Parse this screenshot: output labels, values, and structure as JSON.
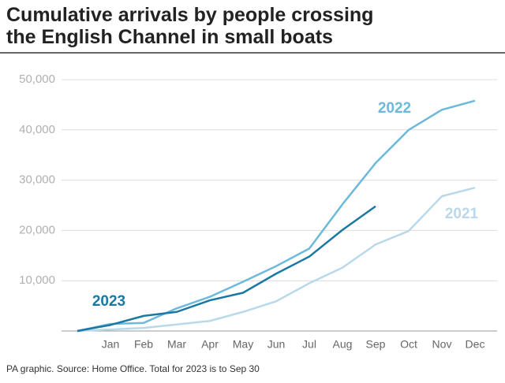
{
  "chart_data": {
    "type": "line",
    "title": [
      "Cumulative arrivals by people crossing",
      "the English Channel in small boats"
    ],
    "source": "PA graphic. Source: Home Office. Total for 2023 is to Sep 30",
    "categories": [
      null,
      "Jan",
      "Feb",
      "Mar",
      "Apr",
      "May",
      "Jun",
      "Jul",
      "Aug",
      "Sep",
      "Oct",
      "Nov",
      "Dec"
    ],
    "series": [
      {
        "name": "2021",
        "color": "#b9d9ea",
        "values": [
          0,
          300,
          600,
          1300,
          2000,
          3800,
          5900,
          9500,
          12600,
          17200,
          19900,
          26800,
          28500
        ]
      },
      {
        "name": "2022",
        "color": "#6cb9db",
        "values": [
          0,
          1400,
          1600,
          4500,
          6800,
          9800,
          12900,
          16400,
          25200,
          33400,
          40000,
          44000,
          45800
        ]
      },
      {
        "name": "2023",
        "color": "#1a78a3",
        "values": [
          0,
          1200,
          3000,
          3800,
          6100,
          7600,
          11400,
          14800,
          20100,
          24800,
          null,
          null,
          null
        ]
      }
    ],
    "ylim": [
      0,
      50000
    ],
    "yticks": [
      {
        "value": 10000,
        "label": "10,000"
      },
      {
        "value": 20000,
        "label": "20,000"
      },
      {
        "value": 30000,
        "label": "30,000"
      },
      {
        "value": 40000,
        "label": "40,000"
      },
      {
        "value": 50000,
        "label": "50,000"
      }
    ],
    "grid": true
  }
}
